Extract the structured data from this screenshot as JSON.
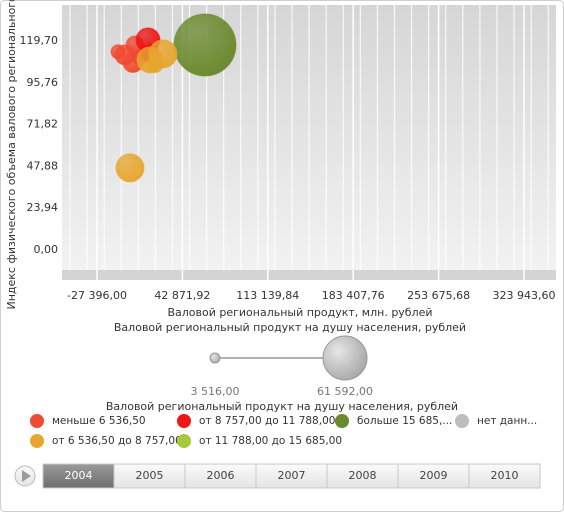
{
  "chart_data": {
    "type": "bubble",
    "y_label": "Индекс физического объема валового регионального о...",
    "x_label": "Валовой региональный продукт, млн. рублей",
    "xlim": [
      -56200,
      350274
    ],
    "ylim": [
      -17.2,
      140.3
    ],
    "xticks": [
      {
        "value": -27396,
        "label": "-27 396,00"
      },
      {
        "value": 42871.92,
        "label": "42 871,92"
      },
      {
        "value": 113139.84,
        "label": "113 139,84"
      },
      {
        "value": 183407.76,
        "label": "183 407,76"
      },
      {
        "value": 253675.68,
        "label": "253 675,68"
      },
      {
        "value": 323943.6,
        "label": "323 943,60"
      }
    ],
    "yticks": [
      {
        "value": 119.7,
        "label": "119,70"
      },
      {
        "value": 95.76,
        "label": "95,76"
      },
      {
        "value": 71.82,
        "label": "71,82"
      },
      {
        "value": 47.88,
        "label": "47,88"
      },
      {
        "value": 23.94,
        "label": "23,94"
      },
      {
        "value": 0,
        "label": "0,00"
      }
    ],
    "grid": true,
    "size_legend": {
      "title": "Валовой региональный продукт на душу населения, рублей",
      "min": {
        "value": 3516,
        "label": "3 516,00"
      },
      "max": {
        "value": 61592,
        "label": "61 592,00"
      }
    },
    "legend_title": "Валовой региональный продукт на душу населения, рублей",
    "series": [
      {
        "name": "меньше 6 536,50",
        "color": "#f04b32",
        "x": [
          -4358,
          3870,
          2225,
          -10117,
          7984
        ],
        "values": [
          111.7,
          117.4,
          107.4,
          113.5,
          110.6
        ],
        "sizes": [
          20596,
          17180,
          20596,
          10348,
          13764
        ]
      },
      {
        "name": "от 8 757,00 до 11 788,00",
        "color": "#ee1515",
        "x": [
          14567,
          16212
        ],
        "values": [
          120.3,
          112.8
        ],
        "sizes": [
          27428,
          17180
        ]
      },
      {
        "name": "больше 15 685,...",
        "color": "#6b8a2e",
        "x": [
          61466
        ],
        "values": [
          117.4
        ],
        "sizes": [
          92332
        ]
      },
      {
        "name": "нет данн...",
        "color": "#bdbdbd",
        "x": [],
        "values": [],
        "sizes": []
      },
      {
        "name": "от 6 536,50 до 8 757,00",
        "color": "#e8a62e",
        "x": [
          -244,
          26909,
          16212,
          20326
        ],
        "values": [
          47.0,
          112.3,
          108.9,
          106.2
        ],
        "sizes": [
          34260,
          34260,
          30844,
          13764
        ]
      },
      {
        "name": "от 11 788,00 до 15 685,00",
        "color": "#a6c83a",
        "x": [],
        "values": [],
        "sizes": []
      }
    ]
  },
  "timeline": {
    "years": [
      "2004",
      "2005",
      "2006",
      "2007",
      "2008",
      "2009",
      "2010"
    ],
    "selected": 0
  }
}
